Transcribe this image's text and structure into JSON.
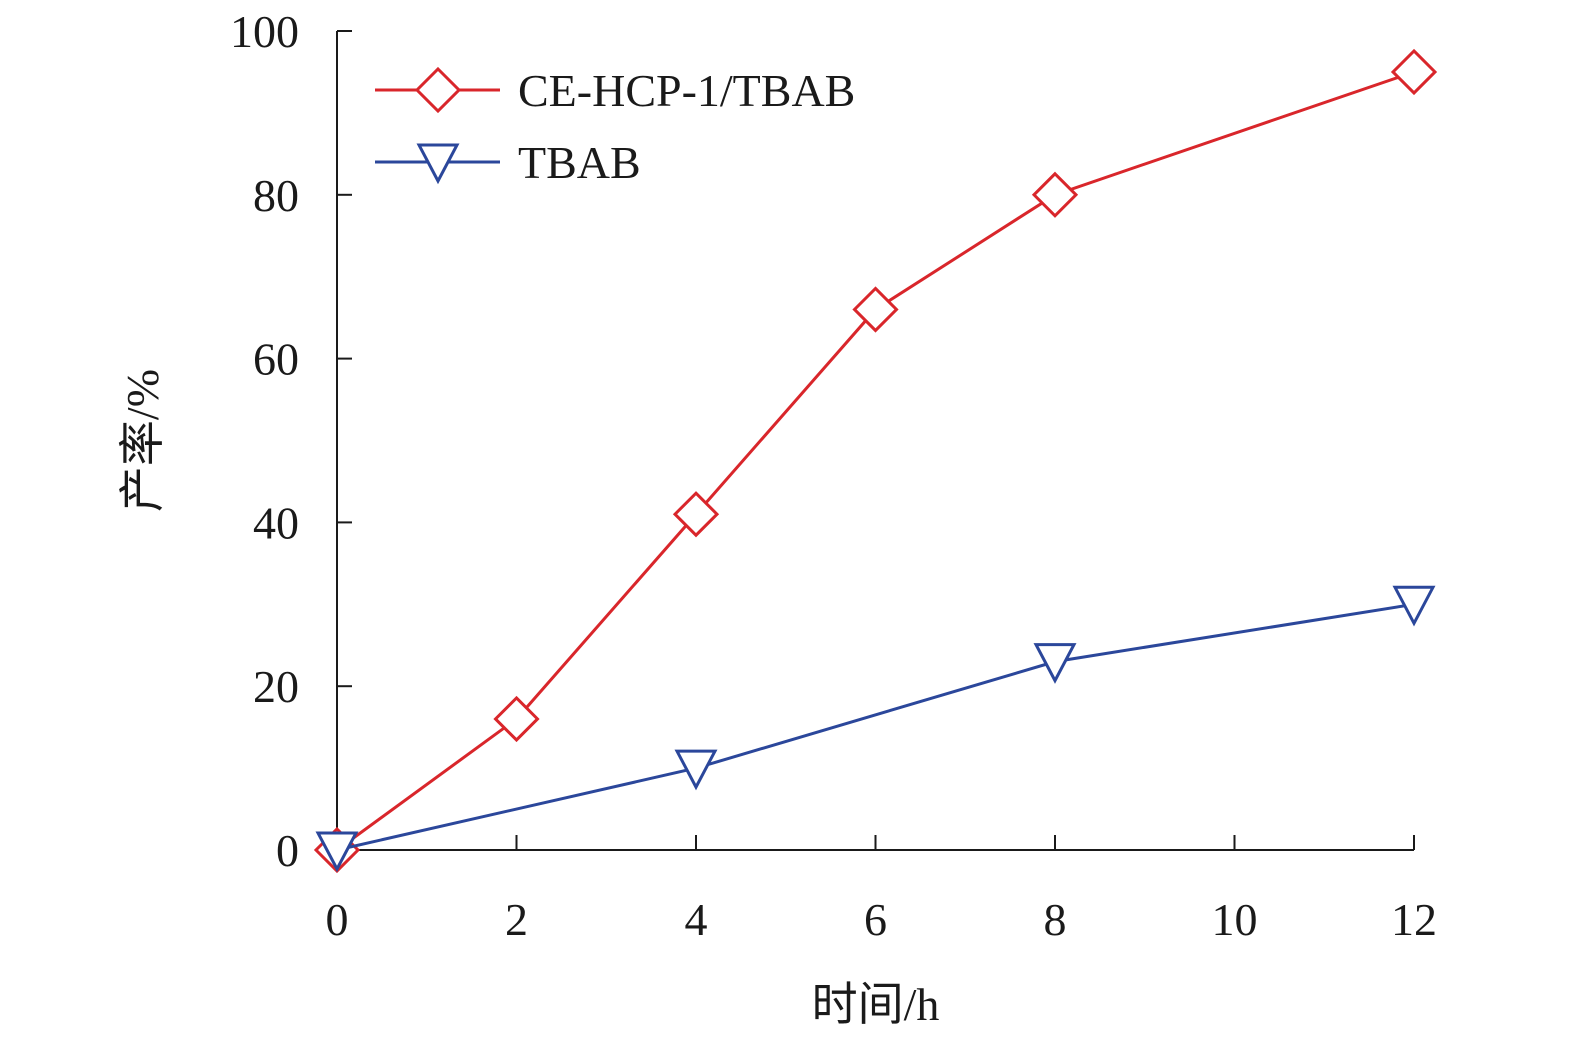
{
  "chart_data": {
    "type": "line",
    "xlabel": "时间/h",
    "ylabel": "产率/%",
    "xlim": [
      0,
      12
    ],
    "ylim": [
      0,
      100
    ],
    "xticks": [
      0,
      2,
      4,
      6,
      8,
      10,
      12
    ],
    "yticks": [
      0,
      20,
      40,
      60,
      80,
      100
    ],
    "grid": false,
    "legend_position": "top-left",
    "series": [
      {
        "name": "CE-HCP-1/TBAB",
        "color": "#d9262b",
        "marker": "diamond",
        "x": [
          0,
          2,
          4,
          6,
          8,
          12
        ],
        "y": [
          0,
          16,
          41,
          66,
          80,
          95
        ]
      },
      {
        "name": "TBAB",
        "color": "#2b479b",
        "marker": "triangle-down",
        "x": [
          0,
          4,
          8,
          12
        ],
        "y": [
          0,
          10,
          23,
          30
        ]
      }
    ]
  }
}
